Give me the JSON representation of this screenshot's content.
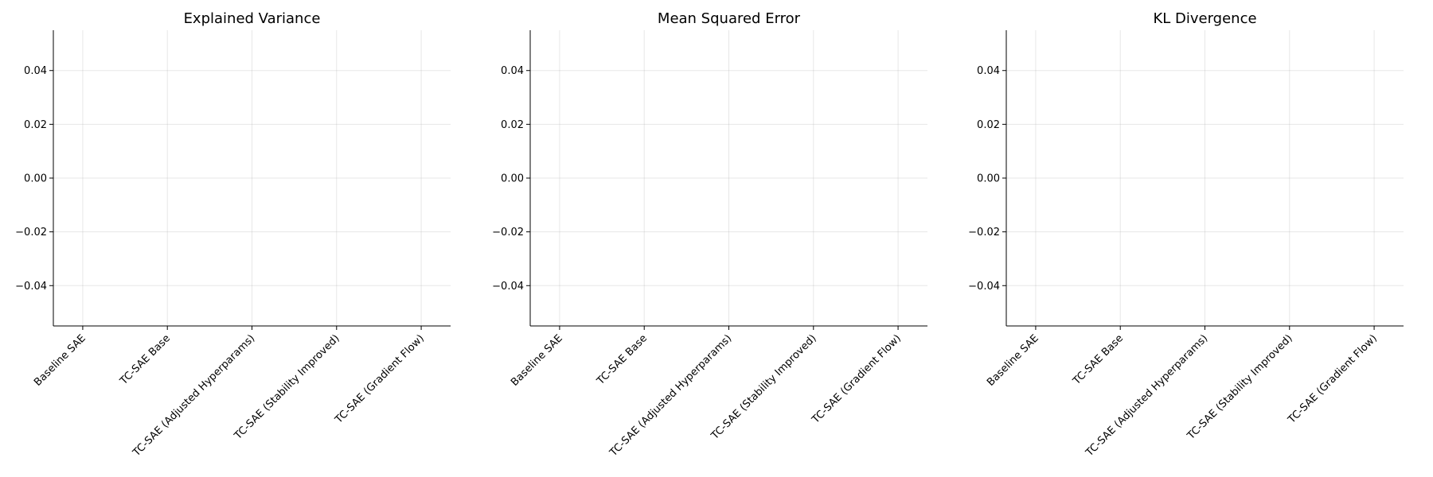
{
  "chart_data": [
    {
      "type": "bar",
      "title": "Explained Variance",
      "categories": [
        "Baseline SAE",
        "TC-SAE Base",
        "TC-SAE (Adjusted Hyperparams)",
        "TC-SAE (Stability Improved)",
        "TC-SAE (Gradient Flow)"
      ],
      "values": [
        null,
        null,
        null,
        null,
        null
      ],
      "yticks": [
        "0.04",
        "0.02",
        "0.00",
        "−0.02",
        "−0.04"
      ],
      "ytick_values": [
        0.04,
        0.02,
        0.0,
        -0.02,
        -0.04
      ],
      "ylim": [
        -0.055,
        0.055
      ],
      "xlabel": "",
      "ylabel": "",
      "grid": true,
      "legend": "none"
    },
    {
      "type": "bar",
      "title": "Mean Squared Error",
      "categories": [
        "Baseline SAE",
        "TC-SAE Base",
        "TC-SAE (Adjusted Hyperparams)",
        "TC-SAE (Stability Improved)",
        "TC-SAE (Gradient Flow)"
      ],
      "values": [
        null,
        null,
        null,
        null,
        null
      ],
      "yticks": [
        "0.04",
        "0.02",
        "0.00",
        "−0.02",
        "−0.04"
      ],
      "ytick_values": [
        0.04,
        0.02,
        0.0,
        -0.02,
        -0.04
      ],
      "ylim": [
        -0.055,
        0.055
      ],
      "xlabel": "",
      "ylabel": "",
      "grid": true,
      "legend": "none"
    },
    {
      "type": "bar",
      "title": "KL Divergence",
      "categories": [
        "Baseline SAE",
        "TC-SAE Base",
        "TC-SAE (Adjusted Hyperparams)",
        "TC-SAE (Stability Improved)",
        "TC-SAE (Gradient Flow)"
      ],
      "values": [
        null,
        null,
        null,
        null,
        null
      ],
      "yticks": [
        "0.04",
        "0.02",
        "0.00",
        "−0.02",
        "−0.04"
      ],
      "ytick_values": [
        0.04,
        0.02,
        0.0,
        -0.02,
        -0.04
      ],
      "ylim": [
        -0.055,
        0.055
      ],
      "xlabel": "",
      "ylabel": "",
      "grid": true,
      "legend": "none"
    }
  ]
}
